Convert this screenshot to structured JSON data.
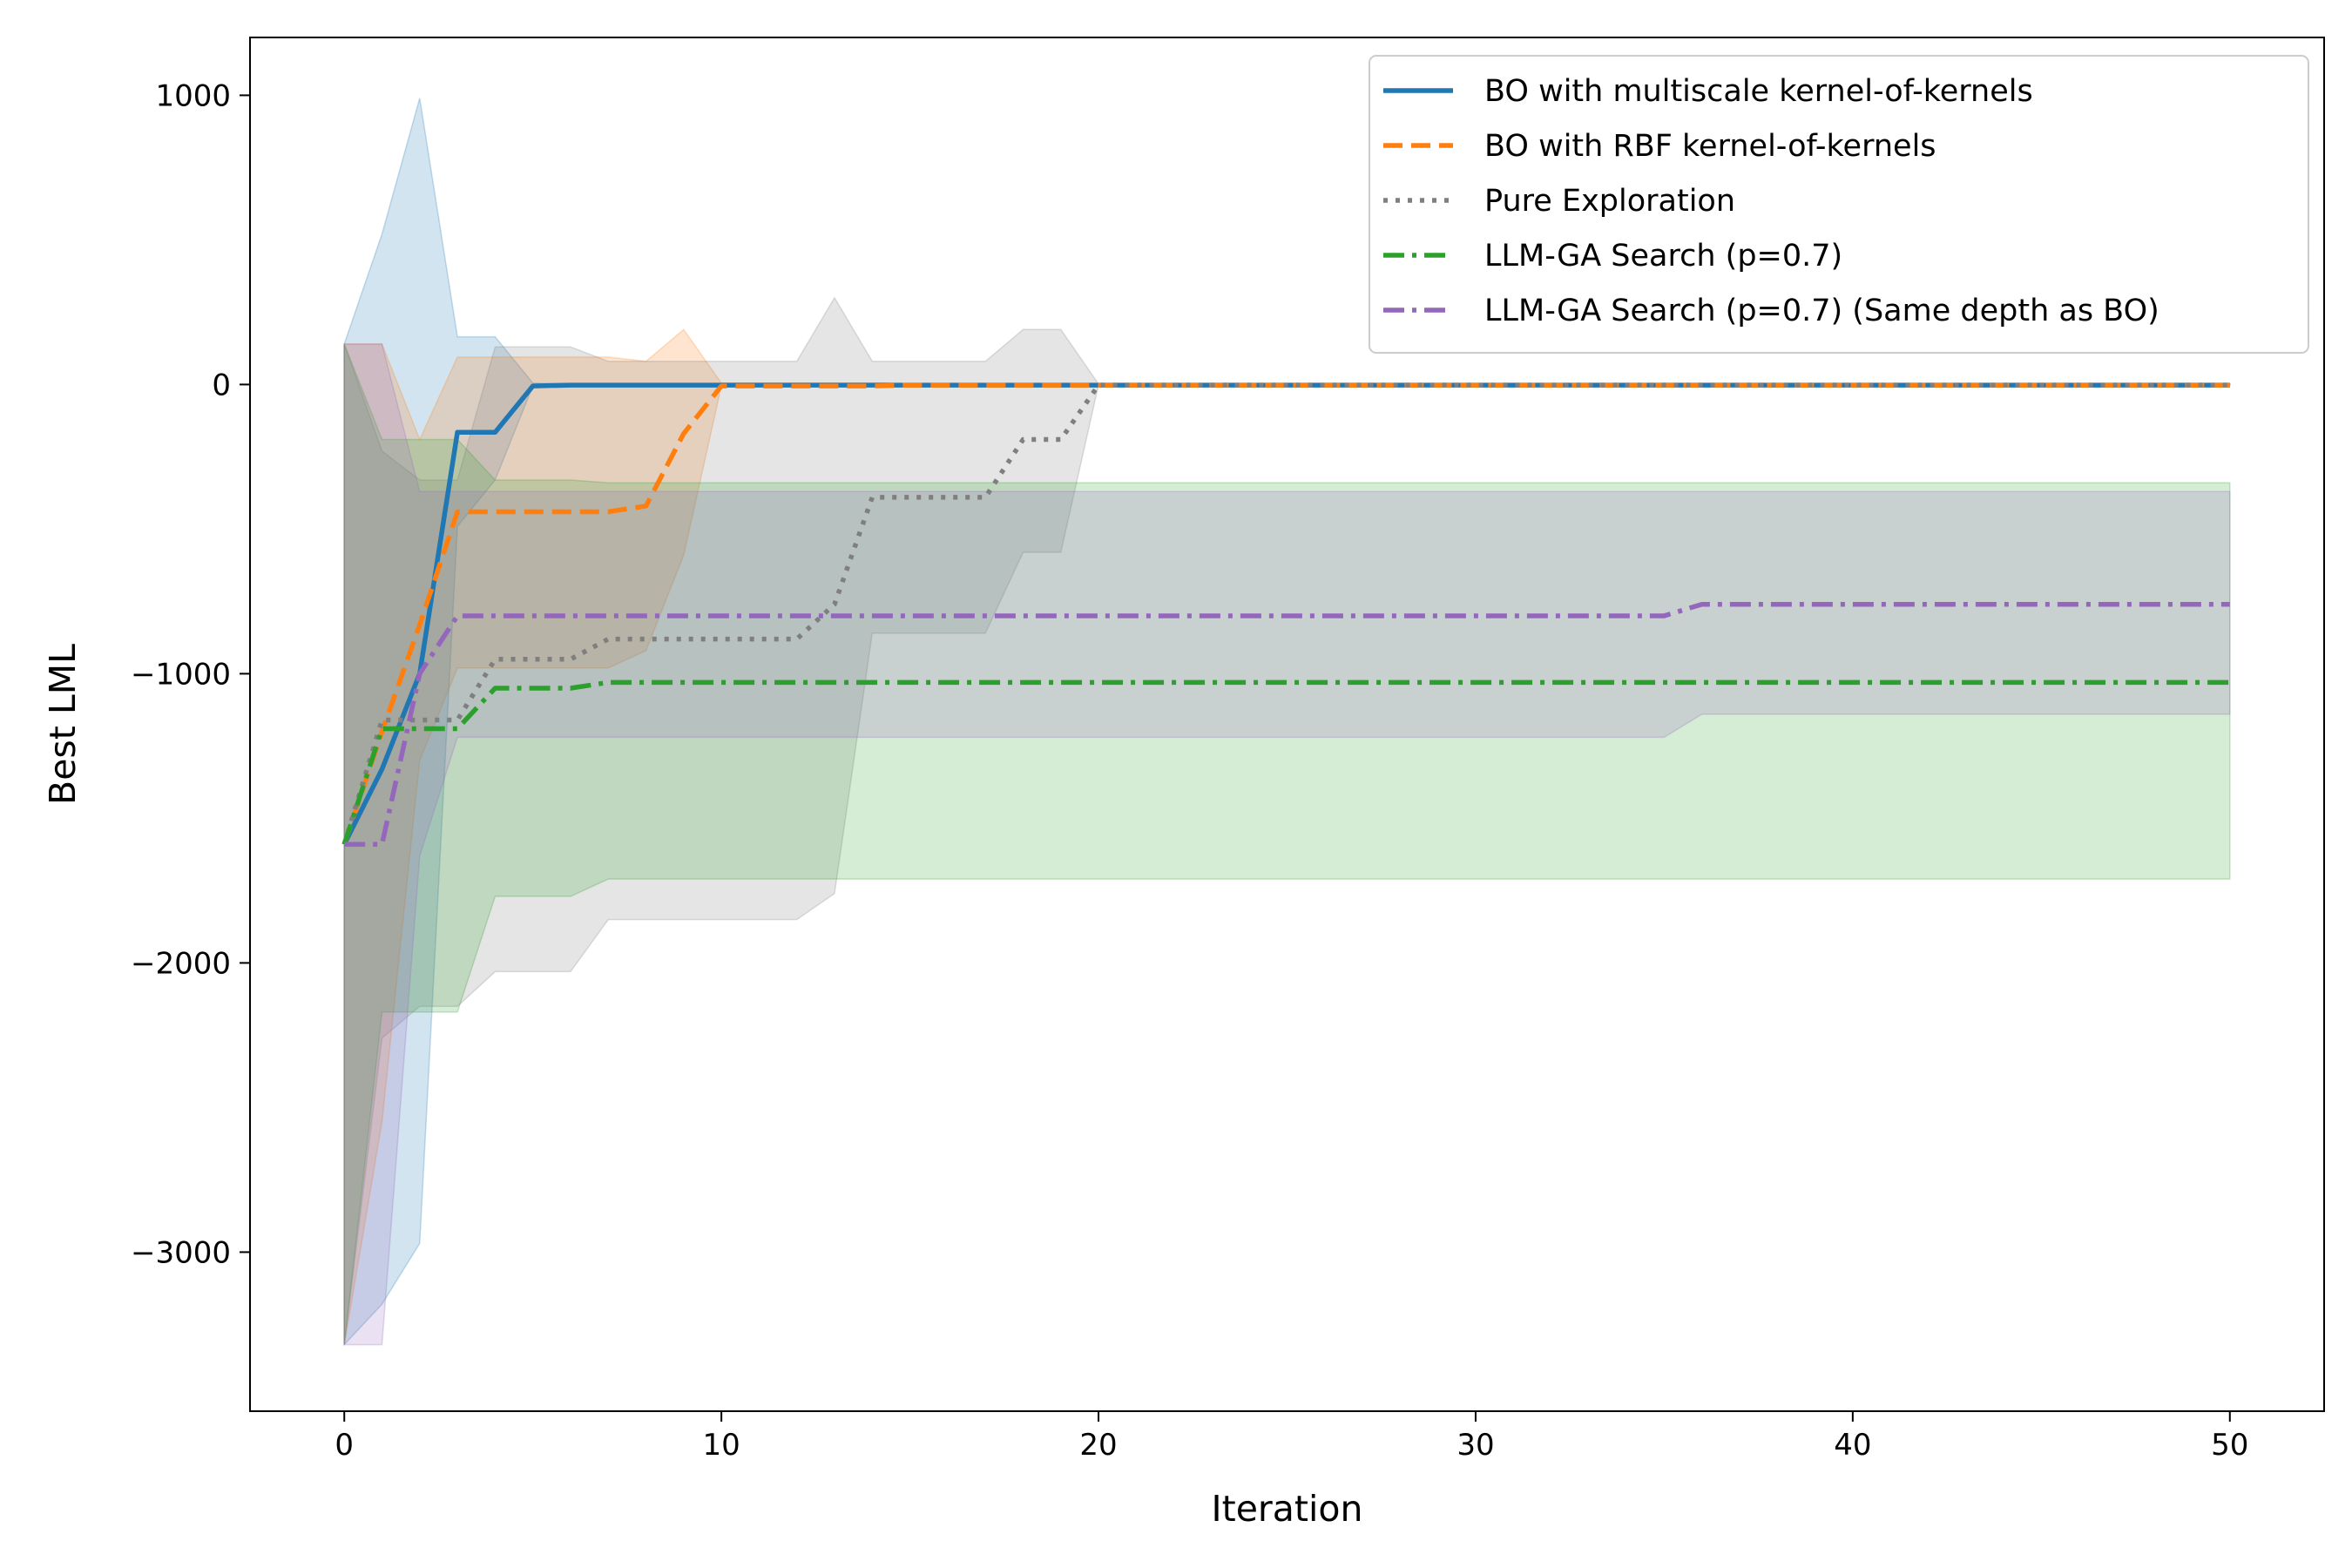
{
  "chart_data": {
    "type": "line",
    "title": "",
    "xlabel": "Iteration",
    "ylabel": "Best LML",
    "xlim": [
      -2.5,
      52.5
    ],
    "ylim": [
      -3550,
      1200
    ],
    "xticks": [
      0,
      10,
      20,
      30,
      40,
      50
    ],
    "yticks": [
      1000,
      0,
      -1000,
      -2000,
      -3000
    ],
    "ytick_labels": [
      "1000",
      "0",
      "−1000",
      "−2000",
      "−3000"
    ],
    "grid": false,
    "legend_position": "top-right",
    "series": [
      {
        "name": "BO with multiscale kernel-of-kernels",
        "color": "#1f77b4",
        "dash": "solid",
        "x": [
          0,
          1,
          2,
          3,
          4,
          5,
          6,
          50
        ],
        "y": [
          -1590,
          -1330,
          -1000,
          -165,
          -165,
          -5,
          -2,
          -2
        ],
        "band_x": [
          0,
          1,
          2,
          3,
          4,
          5,
          6,
          50
        ],
        "band_upper": [
          140,
          520,
          990,
          165,
          165,
          5,
          2,
          2
        ],
        "band_lower": [
          -3320,
          -3180,
          -2970,
          -490,
          -330,
          -5,
          -2,
          -2
        ]
      },
      {
        "name": "BO with RBF kernel-of-kernels",
        "color": "#ff7f0e",
        "dash": "dashed",
        "x": [
          0,
          1,
          2,
          3,
          4,
          5,
          6,
          7,
          8,
          9,
          10,
          11,
          12,
          13,
          14,
          15,
          16,
          17,
          18,
          19,
          20,
          50
        ],
        "y": [
          -1590,
          -1200,
          -830,
          -440,
          -440,
          -440,
          -440,
          -440,
          -420,
          -170,
          -5,
          -5,
          -5,
          -5,
          -5,
          -2,
          -2,
          -2,
          -2,
          -2,
          -2,
          -2
        ],
        "band_x": [
          0,
          1,
          2,
          3,
          4,
          5,
          6,
          7,
          8,
          9,
          10,
          11,
          12,
          13,
          14,
          15,
          16,
          17,
          18,
          19,
          20,
          50
        ],
        "band_upper": [
          140,
          140,
          -190,
          95,
          95,
          95,
          95,
          95,
          80,
          190,
          5,
          5,
          5,
          5,
          5,
          2,
          2,
          2,
          2,
          2,
          2,
          2
        ],
        "band_lower": [
          -3320,
          -2550,
          -1300,
          -980,
          -980,
          -980,
          -980,
          -980,
          -920,
          -590,
          -5,
          -5,
          -5,
          -5,
          -5,
          -2,
          -2,
          -2,
          -2,
          -2,
          -2,
          -2
        ]
      },
      {
        "name": "Pure Exploration",
        "color": "#7f7f7f",
        "dash": "dotted",
        "x": [
          0,
          1,
          2,
          3,
          4,
          5,
          6,
          7,
          8,
          9,
          10,
          11,
          12,
          13,
          14,
          15,
          16,
          17,
          18,
          19,
          20,
          50
        ],
        "y": [
          -1590,
          -1160,
          -1160,
          -1160,
          -950,
          -950,
          -950,
          -880,
          -880,
          -880,
          -880,
          -880,
          -880,
          -760,
          -390,
          -390,
          -390,
          -390,
          -190,
          -190,
          -2,
          -2
        ],
        "band_x": [
          0,
          1,
          2,
          3,
          4,
          5,
          6,
          7,
          8,
          9,
          10,
          11,
          12,
          13,
          14,
          15,
          16,
          17,
          18,
          19,
          20,
          50
        ],
        "band_upper": [
          140,
          -230,
          -330,
          -330,
          130,
          130,
          130,
          80,
          80,
          80,
          80,
          80,
          80,
          300,
          80,
          80,
          80,
          80,
          190,
          190,
          2,
          2
        ],
        "band_lower": [
          -3320,
          -2260,
          -2150,
          -2150,
          -2030,
          -2030,
          -2030,
          -1850,
          -1850,
          -1850,
          -1850,
          -1850,
          -1850,
          -1760,
          -860,
          -860,
          -860,
          -860,
          -580,
          -580,
          -2,
          -2
        ]
      },
      {
        "name": "LLM-GA Search (p=0.7)",
        "color": "#2ca02c",
        "dash": "dashdot",
        "x": [
          0,
          1,
          2,
          3,
          4,
          5,
          6,
          7,
          50
        ],
        "y": [
          -1590,
          -1190,
          -1190,
          -1190,
          -1050,
          -1050,
          -1050,
          -1030,
          -1030
        ],
        "band_x": [
          0,
          1,
          2,
          3,
          4,
          5,
          6,
          7,
          50
        ],
        "band_upper": [
          140,
          -190,
          -190,
          -190,
          -330,
          -330,
          -330,
          -340,
          -340
        ],
        "band_lower": [
          -3320,
          -2170,
          -2170,
          -2170,
          -1770,
          -1770,
          -1770,
          -1710,
          -1710
        ]
      },
      {
        "name": "LLM-GA Search (p=0.7) (Same depth as BO)",
        "color": "#9467bd",
        "dash": "dashdot",
        "x": [
          0,
          1,
          2,
          3,
          4,
          35,
          36,
          50
        ],
        "y": [
          -1590,
          -1590,
          -1000,
          -800,
          -800,
          -800,
          -760,
          -760
        ],
        "band_x": [
          0,
          1,
          2,
          3,
          4,
          35,
          36,
          50
        ],
        "band_upper": [
          140,
          140,
          -370,
          -370,
          -370,
          -370,
          -370,
          -370
        ],
        "band_lower": [
          -3320,
          -3320,
          -1630,
          -1220,
          -1220,
          -1220,
          -1140,
          -1140
        ]
      }
    ]
  }
}
